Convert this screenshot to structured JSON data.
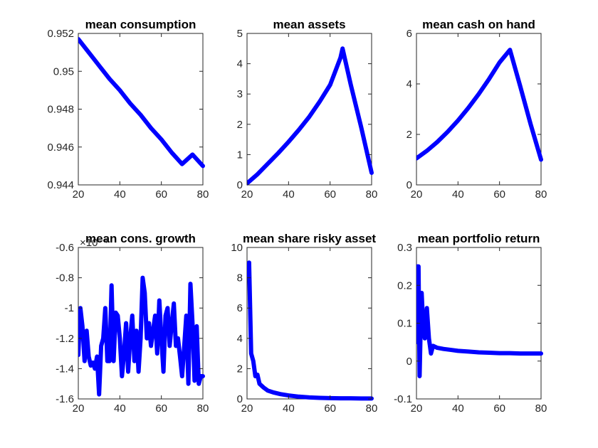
{
  "figure": {
    "background": "#ffffff",
    "line_color": "#0000ff"
  },
  "chart_data": [
    {
      "type": "line",
      "title": "mean consumption",
      "xlim": [
        20,
        80
      ],
      "ylim": [
        0.944,
        0.952
      ],
      "xticks": [
        20,
        40,
        60,
        80
      ],
      "xtick_labels": [
        "20",
        "40",
        "60",
        "80"
      ],
      "yticks": [
        0.944,
        0.946,
        0.948,
        0.95,
        0.952
      ],
      "ytick_labels": [
        "0.944",
        "0.946",
        "0.948",
        "0.95",
        "0.952"
      ],
      "y_exponent": "",
      "series": [
        {
          "color": "#0000ff",
          "x": [
            20,
            25,
            30,
            35,
            40,
            45,
            50,
            55,
            60,
            65,
            70,
            75,
            80
          ],
          "y": [
            0.9517,
            0.951,
            0.9503,
            0.9496,
            0.949,
            0.9483,
            0.9477,
            0.947,
            0.9464,
            0.9457,
            0.9451,
            0.9456,
            0.945
          ]
        }
      ]
    },
    {
      "type": "line",
      "title": "mean assets",
      "xlim": [
        20,
        80
      ],
      "ylim": [
        0,
        5
      ],
      "xticks": [
        20,
        40,
        60,
        80
      ],
      "xtick_labels": [
        "20",
        "40",
        "60",
        "80"
      ],
      "yticks": [
        0,
        1,
        2,
        3,
        4,
        5
      ],
      "ytick_labels": [
        "0",
        "1",
        "2",
        "3",
        "4",
        "5"
      ],
      "y_exponent": "",
      "series": [
        {
          "color": "#0000ff",
          "x": [
            20,
            25,
            30,
            35,
            40,
            45,
            50,
            55,
            60,
            65,
            66,
            70,
            75,
            80
          ],
          "y": [
            0.05,
            0.35,
            0.7,
            1.05,
            1.42,
            1.82,
            2.25,
            2.75,
            3.3,
            4.2,
            4.5,
            3.3,
            1.9,
            0.4
          ]
        }
      ]
    },
    {
      "type": "line",
      "title": "mean cash on hand",
      "xlim": [
        20,
        80
      ],
      "ylim": [
        0,
        6
      ],
      "xticks": [
        20,
        40,
        60,
        80
      ],
      "xtick_labels": [
        "20",
        "40",
        "60",
        "80"
      ],
      "yticks": [
        0,
        2,
        4,
        6
      ],
      "ytick_labels": [
        "0",
        "2",
        "4",
        "6"
      ],
      "y_exponent": "",
      "series": [
        {
          "color": "#0000ff",
          "x": [
            20,
            25,
            30,
            35,
            40,
            45,
            50,
            55,
            60,
            65,
            70,
            75,
            80
          ],
          "y": [
            1.05,
            1.35,
            1.7,
            2.1,
            2.55,
            3.05,
            3.6,
            4.2,
            4.85,
            5.35,
            3.9,
            2.4,
            1.0
          ]
        }
      ]
    },
    {
      "type": "line",
      "title": "mean cons. growth",
      "xlim": [
        20,
        80
      ],
      "ylim": [
        -1.6,
        -0.6
      ],
      "xticks": [
        20,
        40,
        60,
        80
      ],
      "xtick_labels": [
        "20",
        "40",
        "60",
        "80"
      ],
      "yticks": [
        -1.6,
        -1.4,
        -1.2,
        -1,
        -0.8,
        -0.6
      ],
      "ytick_labels": [
        "-1.6",
        "-1.4",
        "-1.2",
        "-1",
        "-0.8",
        "-0.6"
      ],
      "y_exponent": "×10⁻⁴",
      "series": [
        {
          "color": "#0000ff",
          "x": [
            20,
            21,
            22,
            23,
            24,
            25,
            26,
            27,
            28,
            29,
            30,
            31,
            32,
            33,
            34,
            35,
            36,
            37,
            38,
            39,
            40,
            41,
            42,
            43,
            44,
            45,
            46,
            47,
            48,
            49,
            50,
            51,
            52,
            53,
            54,
            55,
            56,
            57,
            58,
            59,
            60,
            61,
            62,
            63,
            64,
            65,
            66,
            67,
            68,
            69,
            70,
            71,
            72,
            73,
            74,
            75,
            76,
            77,
            78,
            79,
            80
          ],
          "y": [
            -1.31,
            -1.0,
            -1.12,
            -1.35,
            -1.15,
            -1.32,
            -1.38,
            -1.36,
            -1.4,
            -1.32,
            -1.57,
            -1.25,
            -1.2,
            -1.0,
            -1.35,
            -1.35,
            -0.85,
            -1.35,
            -1.03,
            -1.05,
            -1.2,
            -1.45,
            -1.3,
            -1.1,
            -1.42,
            -1.2,
            -1.05,
            -1.35,
            -1.15,
            -1.42,
            -1.2,
            -0.8,
            -0.9,
            -1.2,
            -1.1,
            -1.25,
            -1.15,
            -1.05,
            -1.3,
            -0.95,
            -1.2,
            -1.42,
            -1.05,
            -1.0,
            -1.25,
            -1.1,
            -0.97,
            -1.25,
            -1.2,
            -1.32,
            -1.45,
            -1.25,
            -1.05,
            -1.5,
            -0.84,
            -1.1,
            -1.48,
            -1.12,
            -1.5,
            -1.45,
            -1.45
          ]
        }
      ]
    },
    {
      "type": "line",
      "title": "mean share risky asset",
      "xlim": [
        20,
        80
      ],
      "ylim": [
        0,
        10
      ],
      "xticks": [
        20,
        40,
        60,
        80
      ],
      "xtick_labels": [
        "20",
        "40",
        "60",
        "80"
      ],
      "yticks": [
        0,
        2,
        4,
        6,
        8,
        10
      ],
      "ytick_labels": [
        "0",
        "2",
        "4",
        "6",
        "8",
        "10"
      ],
      "y_exponent": "",
      "series": [
        {
          "color": "#0000ff",
          "x": [
            20,
            21,
            22,
            23,
            24,
            25,
            26,
            28,
            30,
            33,
            36,
            40,
            45,
            50,
            55,
            60,
            65,
            70,
            75,
            80
          ],
          "y": [
            8.2,
            9.0,
            3.0,
            2.5,
            1.5,
            1.6,
            1.0,
            0.75,
            0.55,
            0.42,
            0.32,
            0.23,
            0.15,
            0.1,
            0.07,
            0.05,
            0.04,
            0.04,
            0.03,
            0.03
          ]
        }
      ]
    },
    {
      "type": "line",
      "title": "mean portfolio return",
      "xlim": [
        20,
        80
      ],
      "ylim": [
        -0.1,
        0.3
      ],
      "xticks": [
        20,
        40,
        60,
        80
      ],
      "xtick_labels": [
        "20",
        "40",
        "60",
        "80"
      ],
      "yticks": [
        -0.1,
        0,
        0.1,
        0.2,
        0.3
      ],
      "ytick_labels": [
        "-0.1",
        "0",
        "0.1",
        "0.2",
        "0.3"
      ],
      "y_exponent": "",
      "series": [
        {
          "color": "#0000ff",
          "x": [
            20,
            20.5,
            21,
            21.5,
            22,
            22.5,
            23,
            24,
            25,
            26,
            27,
            28,
            30,
            33,
            36,
            40,
            45,
            50,
            55,
            60,
            65,
            70,
            75,
            80
          ],
          "y": [
            0.05,
            0.25,
            0.25,
            -0.04,
            0.08,
            0.18,
            0.12,
            0.06,
            0.14,
            0.06,
            0.02,
            0.04,
            0.035,
            0.032,
            0.03,
            0.027,
            0.025,
            0.023,
            0.022,
            0.021,
            0.021,
            0.02,
            0.02,
            0.02
          ]
        }
      ]
    }
  ]
}
